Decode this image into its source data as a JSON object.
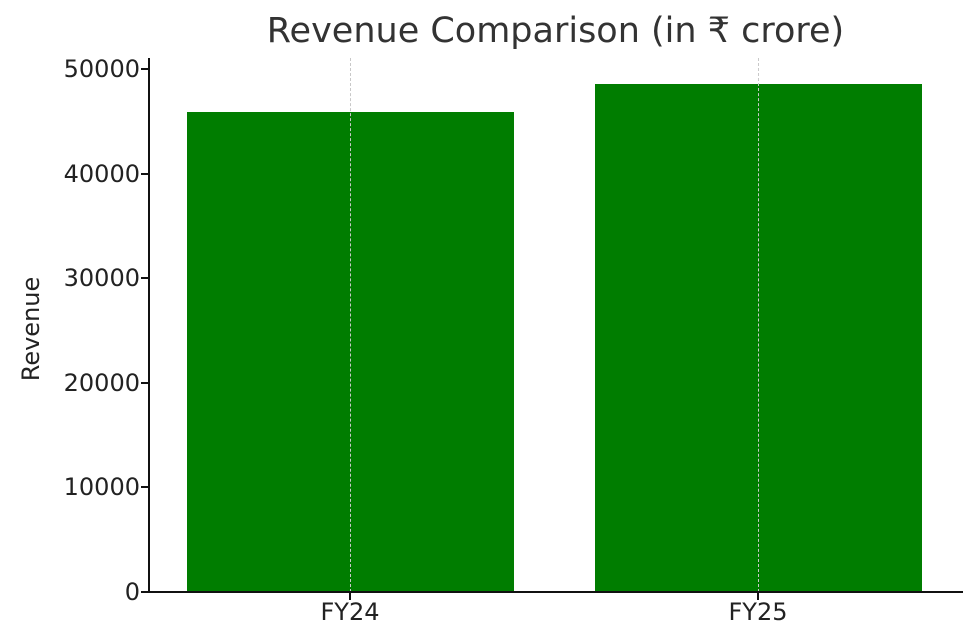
{
  "chart_data": {
    "type": "bar",
    "title": "Revenue Comparison (in ₹ crore)",
    "xlabel": "",
    "ylabel": "Revenue",
    "categories": [
      "FY24",
      "FY25"
    ],
    "values": [
      45900,
      48600
    ],
    "ylim": [
      0,
      51000
    ],
    "yticks": [
      0,
      10000,
      20000,
      30000,
      40000,
      50000
    ],
    "ytick_labels": [
      "0",
      "10000",
      "20000",
      "30000",
      "40000",
      "50000"
    ],
    "grid": {
      "x": true,
      "y": false,
      "style": "dashed",
      "color": "#c8c8c8"
    },
    "bar_color": "#007d00",
    "legend": null
  }
}
